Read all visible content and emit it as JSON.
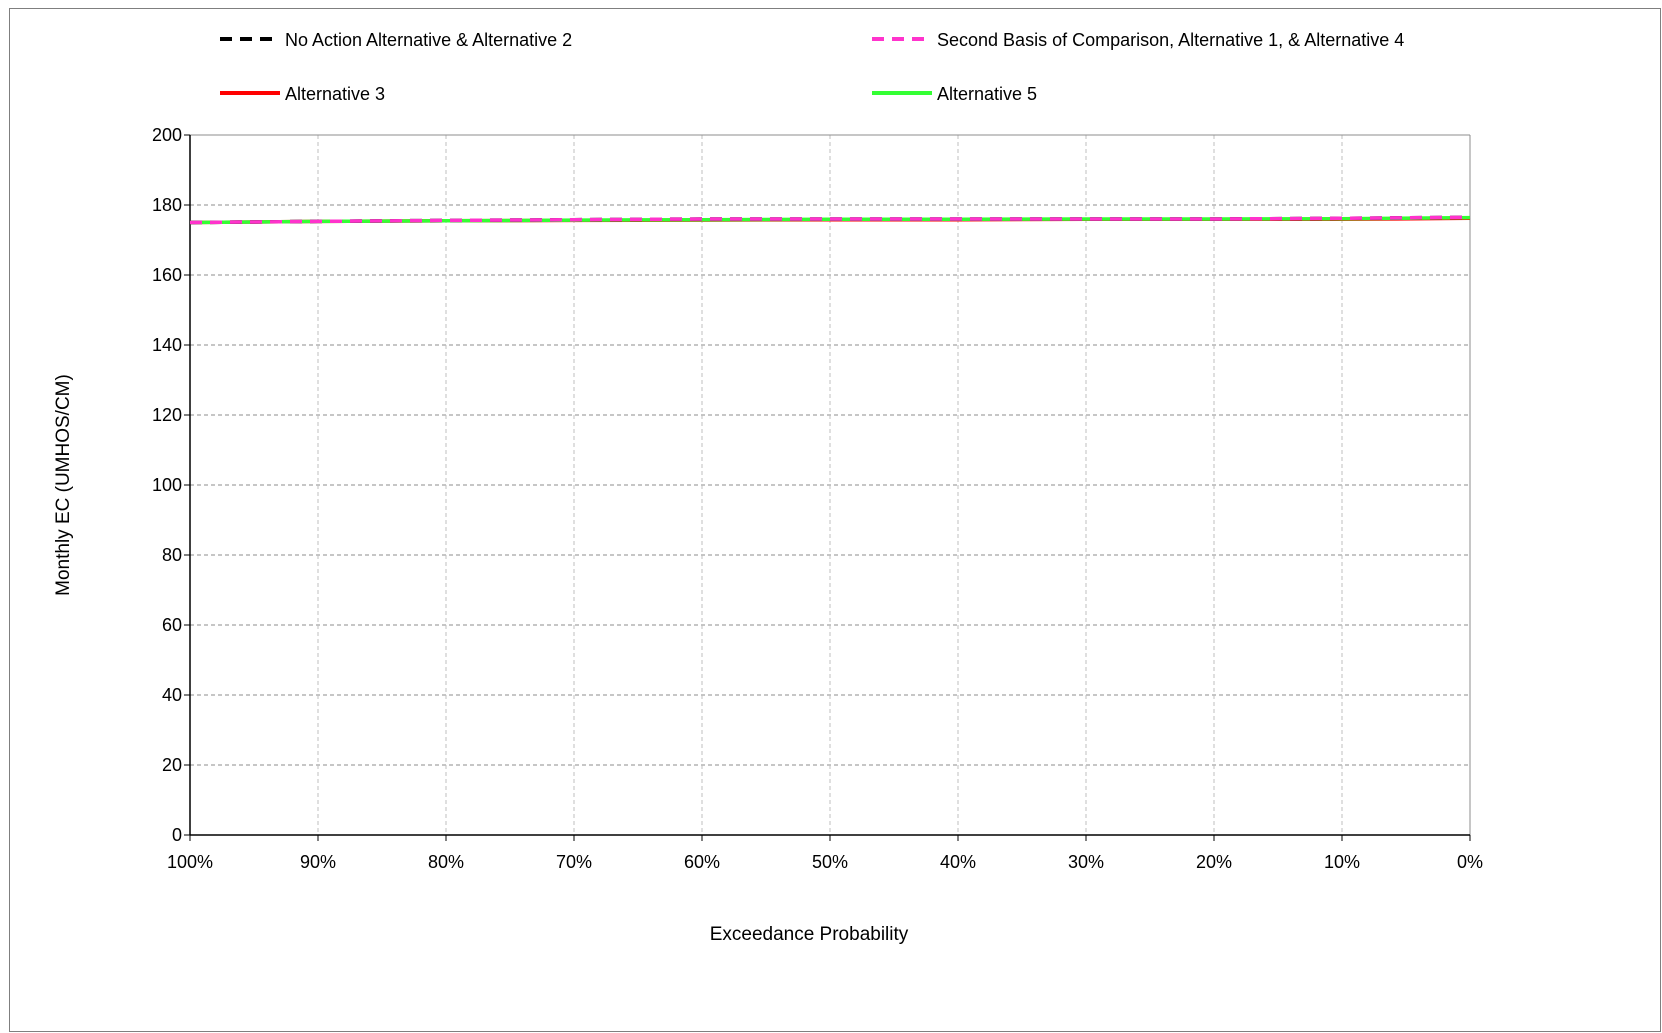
{
  "chart_data": {
    "type": "line",
    "xlabel": "Exceedance Probability",
    "ylabel": "Monthly EC (UMHOS/CM)",
    "xlim": [
      100,
      0
    ],
    "ylim": [
      0,
      200
    ],
    "x_ticks": [
      100,
      90,
      80,
      70,
      60,
      50,
      40,
      30,
      20,
      10,
      0
    ],
    "x_tick_labels": [
      "100%",
      "90%",
      "80%",
      "70%",
      "60%",
      "50%",
      "40%",
      "30%",
      "20%",
      "10%",
      "0%"
    ],
    "y_ticks": [
      0,
      20,
      40,
      60,
      80,
      100,
      120,
      140,
      160,
      180,
      200
    ],
    "y_tick_labels": [
      "0",
      "20",
      "40",
      "60",
      "80",
      "100",
      "120",
      "140",
      "160",
      "180",
      "200"
    ],
    "grid": true,
    "legend_position": "top",
    "series": [
      {
        "name": "No Action Alternative & Alternative 2",
        "color": "#000000",
        "dash": true,
        "x": [
          100,
          90,
          80,
          70,
          60,
          50,
          40,
          30,
          20,
          10,
          0
        ],
        "y": [
          175.0,
          175.3,
          175.6,
          175.8,
          176.0,
          176.0,
          176.0,
          176.0,
          176.0,
          176.2,
          176.5
        ]
      },
      {
        "name": "Second Basis of Comparison, Alternative 1, & Alternative 4",
        "color": "#ff33cc",
        "dash": true,
        "x": [
          100,
          90,
          80,
          70,
          60,
          50,
          40,
          30,
          20,
          10,
          0
        ],
        "y": [
          175.0,
          175.3,
          175.6,
          175.8,
          176.0,
          176.0,
          176.0,
          176.0,
          176.0,
          176.2,
          176.5
        ]
      },
      {
        "name": "Alternative 3",
        "color": "#ff0000",
        "dash": false,
        "x": [
          100,
          90,
          80,
          70,
          60,
          50,
          40,
          30,
          20,
          10,
          0
        ],
        "y": [
          175.0,
          175.3,
          175.5,
          175.6,
          175.7,
          175.8,
          175.8,
          175.9,
          175.9,
          175.9,
          176.2
        ]
      },
      {
        "name": "Alternative 5",
        "color": "#33ff33",
        "dash": false,
        "x": [
          100,
          90,
          80,
          70,
          60,
          50,
          40,
          30,
          20,
          10,
          0
        ],
        "y": [
          175.0,
          175.3,
          175.5,
          175.7,
          175.8,
          175.9,
          175.9,
          176.0,
          176.0,
          176.1,
          176.4
        ]
      }
    ]
  }
}
